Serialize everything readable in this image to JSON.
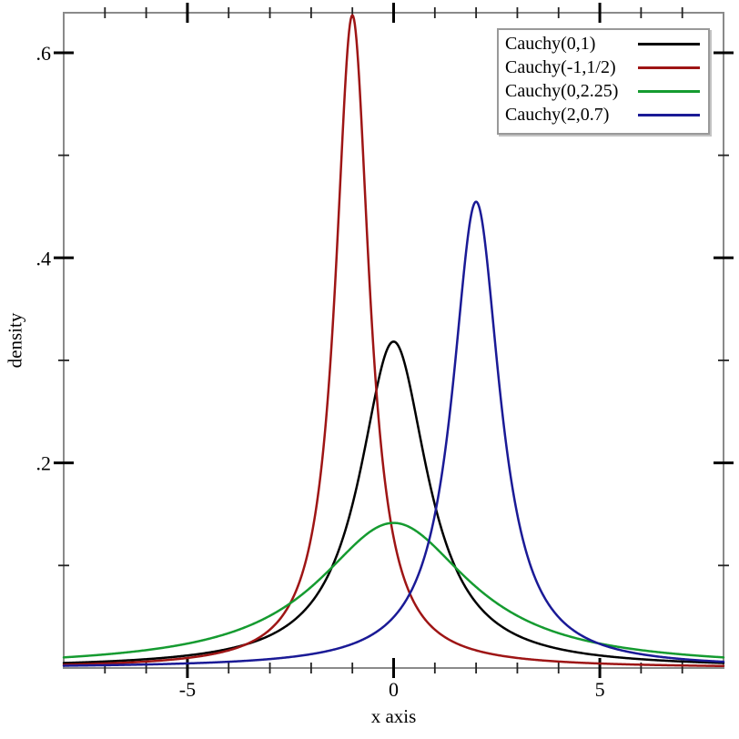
{
  "chart_data": {
    "type": "line",
    "title": "",
    "xlabel": "x axis",
    "ylabel": "density",
    "xlim": [
      -8,
      8
    ],
    "ylim": [
      0,
      0.639
    ],
    "grid": false,
    "legend_position": "top-right",
    "curve_formula": "cauchy-pdf: f(x) = scale / (pi * (scale^2 + (x - location)^2))",
    "x_major_ticks": [
      {
        "v": -5,
        "label": "-5"
      },
      {
        "v": 0,
        "label": "0"
      },
      {
        "v": 5,
        "label": "5"
      }
    ],
    "x_minor_ticks": [
      -7,
      -6,
      -4,
      -3,
      -2,
      -1,
      1,
      2,
      3,
      4,
      6,
      7
    ],
    "y_major_ticks": [
      {
        "v": 0.2,
        "label": ".2"
      },
      {
        "v": 0.4,
        "label": ".4"
      },
      {
        "v": 0.6,
        "label": ".6"
      }
    ],
    "y_minor_ticks": [
      0.1,
      0.3,
      0.5
    ],
    "series": [
      {
        "label": "Cauchy(0,1)",
        "location": 0,
        "scale": 1,
        "peak_density": 0.318,
        "color": "#000000"
      },
      {
        "label": "Cauchy(-1,1/2)",
        "location": -1,
        "scale": 0.5,
        "peak_density": 0.637,
        "color": "#9e1515"
      },
      {
        "label": "Cauchy(0,2.25)",
        "location": 0,
        "scale": 2.25,
        "peak_density": 0.141,
        "color": "#159b30"
      },
      {
        "label": "Cauchy(2,0.7)",
        "location": 2,
        "scale": 0.7,
        "peak_density": 0.455,
        "color": "#1a1a96"
      }
    ],
    "frame_color": "#8a8a8a",
    "tick_color": "#000000"
  }
}
